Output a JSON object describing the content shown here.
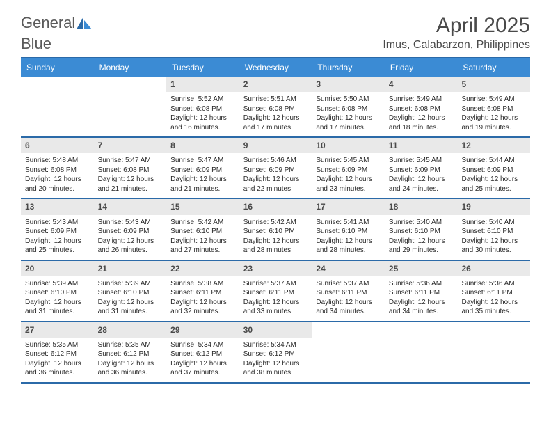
{
  "logo": {
    "text_a": "General",
    "text_b": "Blue"
  },
  "title": "April 2025",
  "location": "Imus, Calabarzon, Philippines",
  "colors": {
    "header_bg": "#3b8bd4",
    "header_text": "#ffffff",
    "rule": "#2b6aa8",
    "daynum_bg": "#e9e9e9",
    "daynum_text": "#4a4a4a",
    "body_text": "#2a2a2a",
    "title_text": "#4a4a4a",
    "logo_gray": "#5a5a5a",
    "logo_blue": "#3b7fc4"
  },
  "day_headers": [
    "Sunday",
    "Monday",
    "Tuesday",
    "Wednesday",
    "Thursday",
    "Friday",
    "Saturday"
  ],
  "weeks": [
    [
      {
        "n": "",
        "sr": "",
        "ss": "",
        "dl": ""
      },
      {
        "n": "",
        "sr": "",
        "ss": "",
        "dl": ""
      },
      {
        "n": "1",
        "sr": "Sunrise: 5:52 AM",
        "ss": "Sunset: 6:08 PM",
        "dl": "Daylight: 12 hours and 16 minutes."
      },
      {
        "n": "2",
        "sr": "Sunrise: 5:51 AM",
        "ss": "Sunset: 6:08 PM",
        "dl": "Daylight: 12 hours and 17 minutes."
      },
      {
        "n": "3",
        "sr": "Sunrise: 5:50 AM",
        "ss": "Sunset: 6:08 PM",
        "dl": "Daylight: 12 hours and 17 minutes."
      },
      {
        "n": "4",
        "sr": "Sunrise: 5:49 AM",
        "ss": "Sunset: 6:08 PM",
        "dl": "Daylight: 12 hours and 18 minutes."
      },
      {
        "n": "5",
        "sr": "Sunrise: 5:49 AM",
        "ss": "Sunset: 6:08 PM",
        "dl": "Daylight: 12 hours and 19 minutes."
      }
    ],
    [
      {
        "n": "6",
        "sr": "Sunrise: 5:48 AM",
        "ss": "Sunset: 6:08 PM",
        "dl": "Daylight: 12 hours and 20 minutes."
      },
      {
        "n": "7",
        "sr": "Sunrise: 5:47 AM",
        "ss": "Sunset: 6:08 PM",
        "dl": "Daylight: 12 hours and 21 minutes."
      },
      {
        "n": "8",
        "sr": "Sunrise: 5:47 AM",
        "ss": "Sunset: 6:09 PM",
        "dl": "Daylight: 12 hours and 21 minutes."
      },
      {
        "n": "9",
        "sr": "Sunrise: 5:46 AM",
        "ss": "Sunset: 6:09 PM",
        "dl": "Daylight: 12 hours and 22 minutes."
      },
      {
        "n": "10",
        "sr": "Sunrise: 5:45 AM",
        "ss": "Sunset: 6:09 PM",
        "dl": "Daylight: 12 hours and 23 minutes."
      },
      {
        "n": "11",
        "sr": "Sunrise: 5:45 AM",
        "ss": "Sunset: 6:09 PM",
        "dl": "Daylight: 12 hours and 24 minutes."
      },
      {
        "n": "12",
        "sr": "Sunrise: 5:44 AM",
        "ss": "Sunset: 6:09 PM",
        "dl": "Daylight: 12 hours and 25 minutes."
      }
    ],
    [
      {
        "n": "13",
        "sr": "Sunrise: 5:43 AM",
        "ss": "Sunset: 6:09 PM",
        "dl": "Daylight: 12 hours and 25 minutes."
      },
      {
        "n": "14",
        "sr": "Sunrise: 5:43 AM",
        "ss": "Sunset: 6:09 PM",
        "dl": "Daylight: 12 hours and 26 minutes."
      },
      {
        "n": "15",
        "sr": "Sunrise: 5:42 AM",
        "ss": "Sunset: 6:10 PM",
        "dl": "Daylight: 12 hours and 27 minutes."
      },
      {
        "n": "16",
        "sr": "Sunrise: 5:42 AM",
        "ss": "Sunset: 6:10 PM",
        "dl": "Daylight: 12 hours and 28 minutes."
      },
      {
        "n": "17",
        "sr": "Sunrise: 5:41 AM",
        "ss": "Sunset: 6:10 PM",
        "dl": "Daylight: 12 hours and 28 minutes."
      },
      {
        "n": "18",
        "sr": "Sunrise: 5:40 AM",
        "ss": "Sunset: 6:10 PM",
        "dl": "Daylight: 12 hours and 29 minutes."
      },
      {
        "n": "19",
        "sr": "Sunrise: 5:40 AM",
        "ss": "Sunset: 6:10 PM",
        "dl": "Daylight: 12 hours and 30 minutes."
      }
    ],
    [
      {
        "n": "20",
        "sr": "Sunrise: 5:39 AM",
        "ss": "Sunset: 6:10 PM",
        "dl": "Daylight: 12 hours and 31 minutes."
      },
      {
        "n": "21",
        "sr": "Sunrise: 5:39 AM",
        "ss": "Sunset: 6:10 PM",
        "dl": "Daylight: 12 hours and 31 minutes."
      },
      {
        "n": "22",
        "sr": "Sunrise: 5:38 AM",
        "ss": "Sunset: 6:11 PM",
        "dl": "Daylight: 12 hours and 32 minutes."
      },
      {
        "n": "23",
        "sr": "Sunrise: 5:37 AM",
        "ss": "Sunset: 6:11 PM",
        "dl": "Daylight: 12 hours and 33 minutes."
      },
      {
        "n": "24",
        "sr": "Sunrise: 5:37 AM",
        "ss": "Sunset: 6:11 PM",
        "dl": "Daylight: 12 hours and 34 minutes."
      },
      {
        "n": "25",
        "sr": "Sunrise: 5:36 AM",
        "ss": "Sunset: 6:11 PM",
        "dl": "Daylight: 12 hours and 34 minutes."
      },
      {
        "n": "26",
        "sr": "Sunrise: 5:36 AM",
        "ss": "Sunset: 6:11 PM",
        "dl": "Daylight: 12 hours and 35 minutes."
      }
    ],
    [
      {
        "n": "27",
        "sr": "Sunrise: 5:35 AM",
        "ss": "Sunset: 6:12 PM",
        "dl": "Daylight: 12 hours and 36 minutes."
      },
      {
        "n": "28",
        "sr": "Sunrise: 5:35 AM",
        "ss": "Sunset: 6:12 PM",
        "dl": "Daylight: 12 hours and 36 minutes."
      },
      {
        "n": "29",
        "sr": "Sunrise: 5:34 AM",
        "ss": "Sunset: 6:12 PM",
        "dl": "Daylight: 12 hours and 37 minutes."
      },
      {
        "n": "30",
        "sr": "Sunrise: 5:34 AM",
        "ss": "Sunset: 6:12 PM",
        "dl": "Daylight: 12 hours and 38 minutes."
      },
      {
        "n": "",
        "sr": "",
        "ss": "",
        "dl": ""
      },
      {
        "n": "",
        "sr": "",
        "ss": "",
        "dl": ""
      },
      {
        "n": "",
        "sr": "",
        "ss": "",
        "dl": ""
      }
    ]
  ]
}
